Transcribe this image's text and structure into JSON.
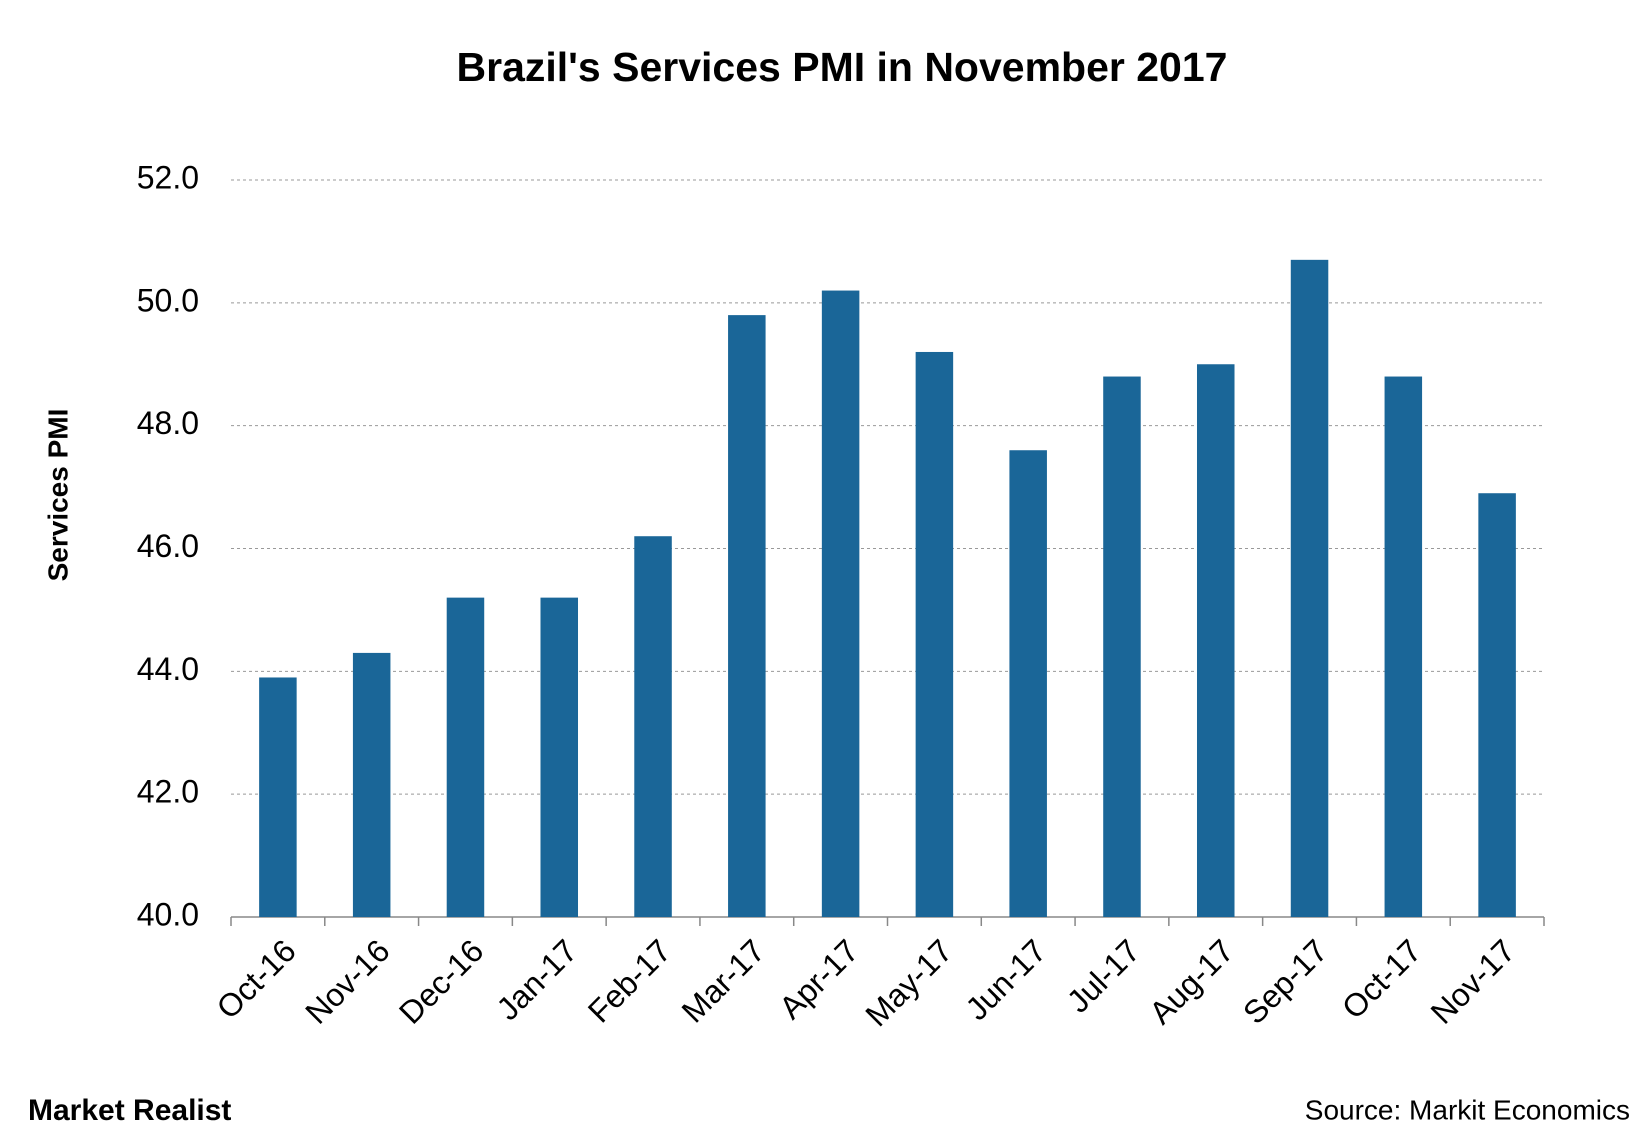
{
  "chart_data": {
    "type": "bar",
    "title": "Brazil's Services PMI in November 2017",
    "y_label": "Services PMI",
    "categories": [
      "Oct-16",
      "Nov-16",
      "Dec-16",
      "Jan-17",
      "Feb-17",
      "Mar-17",
      "Apr-17",
      "May-17",
      "Jun-17",
      "Jul-17",
      "Aug-17",
      "Sep-17",
      "Oct-17",
      "Nov-17"
    ],
    "values": [
      43.9,
      44.3,
      45.2,
      45.2,
      46.2,
      49.8,
      50.2,
      49.2,
      47.6,
      48.8,
      49.0,
      50.7,
      48.8,
      46.9
    ],
    "color": "#1a6698",
    "ylim": [
      40,
      52
    ],
    "yticks": [
      {
        "value": 40,
        "label": "40.0"
      },
      {
        "value": 42,
        "label": "42.0"
      },
      {
        "value": 44,
        "label": "44.0"
      },
      {
        "value": 46,
        "label": "46.0"
      },
      {
        "value": 48,
        "label": "48.0"
      },
      {
        "value": 50,
        "label": "50.0"
      },
      {
        "value": 52,
        "label": "52.0"
      }
    ],
    "grid": true,
    "brand": "Market Realist",
    "source": "Source: Markit Economics"
  }
}
